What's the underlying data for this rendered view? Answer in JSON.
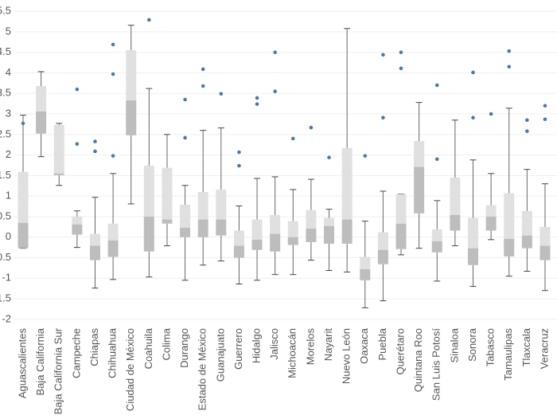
{
  "chart_data": {
    "type": "box",
    "categories": [
      "Aguascalientes",
      "Baja California",
      "Baja California Sur",
      "Campeche",
      "Chiapas",
      "Chihuahua",
      "Ciudad de México",
      "Coahuila",
      "Colima",
      "Durango",
      "Estado de México",
      "Guanajuato",
      "Guerrero",
      "Hidalgo",
      "Jalisco",
      "Michoacán",
      "Morelos",
      "Nayarit",
      "Nuevo León",
      "Oaxaca",
      "Puebla",
      "Querétaro",
      "Quintana Roo",
      "San Luis Potosí",
      "Sinaloa",
      "Sonora",
      "Tabasco",
      "Tamaulipas",
      "Tlaxcala",
      "Veracruz"
    ],
    "whisker_high": [
      2.97,
      4.03,
      2.77,
      0.64,
      0.97,
      1.55,
      5.16,
      3.62,
      2.5,
      1.26,
      2.6,
      2.66,
      0.76,
      1.43,
      1.47,
      1.16,
      1.41,
      0.68,
      5.08,
      0.39,
      1.12,
      1.05,
      3.28,
      0.89,
      2.85,
      1.88,
      1.55,
      3.14,
      1.65,
      1.3
    ],
    "q3": [
      1.59,
      3.68,
      2.73,
      0.5,
      0.08,
      0.33,
      4.55,
      1.74,
      1.69,
      0.79,
      1.1,
      1.16,
      0.16,
      0.43,
      0.54,
      0.39,
      0.66,
      0.47,
      2.17,
      -0.48,
      0.12,
      1.05,
      2.34,
      0.19,
      1.45,
      0.47,
      0.78,
      1.07,
      0.64,
      0.25
    ],
    "median": [
      0.35,
      3.06,
      1.55,
      0.31,
      -0.21,
      -0.08,
      3.33,
      0.5,
      0.43,
      0.23,
      0.43,
      0.43,
      -0.21,
      -0.06,
      0.08,
      0,
      0.21,
      0.27,
      0.43,
      -0.78,
      -0.31,
      0.33,
      1.71,
      -0.1,
      0.54,
      -0.27,
      0.5,
      -0.04,
      0.04,
      -0.21
    ],
    "q1": [
      -0.27,
      2.52,
      1.51,
      0.06,
      -0.56,
      -0.48,
      2.48,
      -0.35,
      0.33,
      0,
      0,
      0.04,
      -0.5,
      -0.31,
      -0.35,
      -0.19,
      -0.12,
      -0.16,
      -0.16,
      -1.05,
      -0.66,
      -0.29,
      0.58,
      -0.37,
      0.16,
      -0.68,
      0.16,
      -0.47,
      -0.27,
      -0.56
    ],
    "whisker_low": [
      -0.27,
      1.96,
      1.26,
      -0.25,
      -1.24,
      -1.03,
      0.81,
      -0.97,
      -0.21,
      -1.05,
      -0.68,
      -0.58,
      -1.14,
      -1.05,
      -0.91,
      -0.91,
      -0.56,
      -0.81,
      -0.85,
      -1.72,
      -1.55,
      -0.43,
      -0.27,
      -1.07,
      -0.21,
      -1.2,
      -0.06,
      -0.95,
      -0.83,
      -1.3
    ],
    "outliers": [
      [
        2.77
      ],
      [],
      [],
      [
        3.6,
        2.27
      ],
      [
        2.33,
        2.09
      ],
      [
        4.69,
        3.97,
        1.98
      ],
      [],
      [
        5.29
      ],
      [],
      [
        3.35,
        2.42
      ],
      [
        4.09,
        3.68
      ],
      [
        3.49
      ],
      [
        2.07,
        1.74
      ],
      [
        3.39,
        3.24
      ],
      [
        4.5,
        3.55
      ],
      [
        2.4
      ],
      [
        2.67
      ],
      [
        1.94
      ],
      [],
      [
        1.98
      ],
      [
        4.44,
        2.91
      ],
      [
        4.5,
        4.11
      ],
      [],
      [
        3.7,
        1.9
      ],
      [],
      [
        4.01,
        2.91
      ],
      [
        3.0
      ],
      [
        4.53,
        4.15
      ],
      [
        2.85,
        2.58
      ],
      [
        3.2,
        2.87
      ]
    ],
    "positive_color": "#4e79a7",
    "negative_color": "#d4782a",
    "ylim": [
      -2.1,
      5.6
    ],
    "yticks": [
      -2.0,
      -1.5,
      -1.0,
      -0.5,
      0.0,
      0.5,
      1.0,
      1.5,
      2.0,
      2.5,
      3.0,
      3.5,
      4.0,
      4.5,
      5.0,
      5.5
    ],
    "grid": true
  }
}
